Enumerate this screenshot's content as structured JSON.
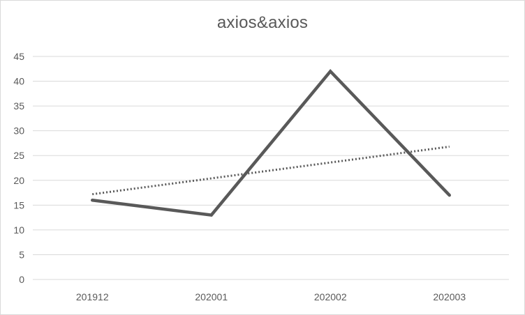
{
  "chart_data": {
    "type": "line",
    "title": "axios&axios",
    "xlabel": "",
    "ylabel": "",
    "categories": [
      "201912",
      "202001",
      "202002",
      "202003"
    ],
    "series": [
      {
        "values": [
          16,
          13,
          42,
          17
        ],
        "color": "#595959",
        "style": "solid"
      }
    ],
    "trendline": {
      "type": "linear",
      "values": [
        17.2,
        20.4,
        23.6,
        26.8
      ],
      "color": "#595959",
      "style": "dotted"
    },
    "ylim": [
      0,
      45
    ],
    "yticks": [
      0,
      5,
      10,
      15,
      20,
      25,
      30,
      35,
      40,
      45
    ],
    "grid": true,
    "gridline_color": "#d9d9d9",
    "legend": "none"
  }
}
